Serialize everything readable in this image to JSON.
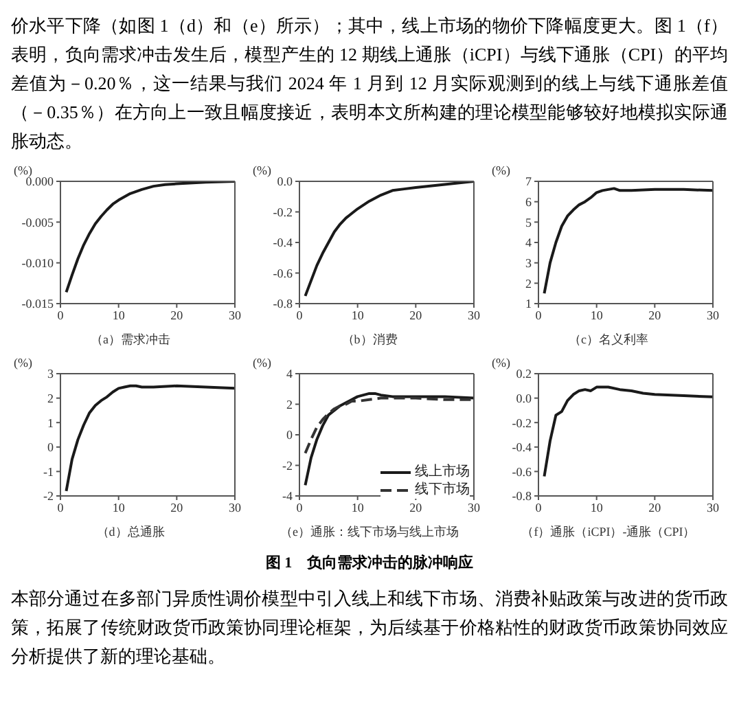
{
  "chart_data": [
    {
      "type": "line",
      "annotations": [
        "价水平下降（如图 1（d）和（e）所示）；其中，线上市场的物价下降幅度更大。图 1（f）表明，负向需求冲击发生后，模型产生的 12 期线上通胀（iCPI）与线下通胀（CPI）的平均差值为－0.20％，这一结果与我们 2024 年 1 月到 12 月实际观测到的线上与线下通胀差值（－0.35％）在方向上一致且幅度接近，表明本文所构建的理论模型能够较好地模拟实际通胀动态。"
      ],
      "xlabel": "（a）需求冲击",
      "ylabel": "(%)",
      "xlim": [
        0,
        30
      ],
      "xticks": [
        0,
        10,
        20,
        30
      ],
      "ylim": [
        -0.015,
        0
      ],
      "yticks": [
        {
          "value": -0.015,
          "label": "-0.015"
        },
        {
          "value": -0.01,
          "label": "-0.010"
        },
        {
          "value": -0.005,
          "label": "-0.005"
        },
        {
          "value": 0,
          "label": "0.000"
        }
      ],
      "series": [
        {
          "color": "#1a1a1a",
          "x": [
            1,
            2,
            3,
            4,
            5,
            6,
            7,
            8,
            9,
            10,
            12,
            14,
            16,
            18,
            20,
            25,
            30
          ],
          "values": [
            -0.0136,
            -0.0115,
            -0.0095,
            -0.0078,
            -0.0064,
            -0.0052,
            -0.0043,
            -0.0035,
            -0.0028,
            -0.0023,
            -0.0015,
            -0.001,
            -0.0006,
            -0.0004,
            -0.0003,
            -0.0001,
            0
          ]
        }
      ]
    },
    {
      "type": "line",
      "xlabel": "（b）消费",
      "ylabel": "(%)",
      "xlim": [
        0,
        30
      ],
      "xticks": [
        0,
        10,
        20,
        30
      ],
      "ylim": [
        -0.8,
        0
      ],
      "yticks": [
        {
          "value": -0.8,
          "label": "-0.8"
        },
        {
          "value": -0.6,
          "label": "-0.6"
        },
        {
          "value": -0.4,
          "label": "-0.4"
        },
        {
          "value": -0.2,
          "label": "-0.2"
        },
        {
          "value": 0,
          "label": "0.0"
        }
      ],
      "series": [
        {
          "color": "#1a1a1a",
          "x": [
            1,
            2,
            3,
            4,
            5,
            6,
            7,
            8,
            10,
            12,
            14,
            16,
            18,
            20,
            25,
            30
          ],
          "values": [
            -0.75,
            -0.65,
            -0.55,
            -0.47,
            -0.4,
            -0.33,
            -0.28,
            -0.24,
            -0.18,
            -0.13,
            -0.09,
            -0.06,
            -0.05,
            -0.04,
            -0.02,
            0
          ]
        }
      ]
    },
    {
      "type": "line",
      "xlabel": "（c）名义利率",
      "ylabel": "(%)",
      "xlim": [
        0,
        30
      ],
      "xticks": [
        0,
        10,
        20,
        30
      ],
      "ylim": [
        1,
        7
      ],
      "yticks": [
        1,
        2,
        3,
        4,
        5,
        6,
        7
      ],
      "series": [
        {
          "color": "#1a1a1a",
          "x": [
            1,
            2,
            3,
            4,
            5,
            6,
            7,
            8,
            9,
            10,
            11,
            12,
            13,
            14,
            16,
            20,
            25,
            30
          ],
          "values": [
            1.5,
            3.0,
            4.0,
            4.8,
            5.3,
            5.6,
            5.85,
            6.0,
            6.2,
            6.45,
            6.55,
            6.6,
            6.65,
            6.55,
            6.55,
            6.6,
            6.6,
            6.55
          ]
        }
      ]
    },
    {
      "type": "line",
      "xlabel": "（d）总通胀",
      "ylabel": "(%)",
      "xlim": [
        0,
        30
      ],
      "xticks": [
        0,
        10,
        20,
        30
      ],
      "ylim": [
        -2,
        3
      ],
      "yticks": [
        -2,
        -1,
        0,
        1,
        2,
        3
      ],
      "series": [
        {
          "color": "#1a1a1a",
          "x": [
            1,
            2,
            3,
            4,
            5,
            6,
            7,
            8,
            9,
            10,
            11,
            12,
            13,
            14,
            16,
            20,
            25,
            30
          ],
          "values": [
            -1.8,
            -0.5,
            0.3,
            0.9,
            1.4,
            1.7,
            1.9,
            2.05,
            2.25,
            2.4,
            2.45,
            2.5,
            2.5,
            2.45,
            2.45,
            2.5,
            2.45,
            2.4
          ]
        }
      ]
    },
    {
      "type": "line",
      "xlabel": "（e）通胀：线下市场与线上市场",
      "ylabel": "(%)",
      "xlim": [
        0,
        30
      ],
      "xticks": [
        0,
        10,
        20,
        30
      ],
      "ylim": [
        -4,
        4
      ],
      "yticks": [
        -4,
        -2,
        0,
        2,
        4
      ],
      "legend": "bottom right",
      "series": [
        {
          "name": "线上市场",
          "color": "#1a1a1a",
          "line_style": "solid",
          "x": [
            1,
            2,
            3,
            4,
            5,
            6,
            7,
            8,
            9,
            10,
            11,
            12,
            13,
            14,
            16,
            20,
            25,
            30
          ],
          "values": [
            -3.3,
            -1.5,
            -0.3,
            0.6,
            1.3,
            1.6,
            1.9,
            2.1,
            2.3,
            2.5,
            2.6,
            2.7,
            2.7,
            2.6,
            2.5,
            2.5,
            2.5,
            2.4
          ]
        },
        {
          "name": "线下市场",
          "color": "#333333",
          "line_style": "dashed",
          "x": [
            1,
            2,
            3,
            4,
            5,
            6,
            7,
            8,
            9,
            10,
            12,
            14,
            16,
            20,
            25,
            30
          ],
          "values": [
            -1.2,
            -0.3,
            0.5,
            1.0,
            1.4,
            1.7,
            1.9,
            2.0,
            2.2,
            2.2,
            2.3,
            2.4,
            2.4,
            2.4,
            2.3,
            2.3
          ]
        }
      ]
    },
    {
      "type": "line",
      "xlabel": "（f）通胀（iCPI）-通胀（CPI）",
      "ylabel": "(%)",
      "xlim": [
        0,
        30
      ],
      "xticks": [
        0,
        10,
        20,
        30
      ],
      "ylim": [
        -0.8,
        0.2
      ],
      "yticks": [
        {
          "value": -0.8,
          "label": "-0.8"
        },
        {
          "value": -0.6,
          "label": "-0.6"
        },
        {
          "value": -0.4,
          "label": "-0.4"
        },
        {
          "value": -0.2,
          "label": "-0.2"
        },
        {
          "value": 0,
          "label": "0.0"
        },
        {
          "value": 0.2,
          "label": "0.2"
        }
      ],
      "annotations": [
        "图 1　负向需求冲击的脉冲响应",
        "本部分通过在多部门异质性调价模型中引入线上和线下市场、消费补贴政策与改进的货币政策，拓展了传统财政货币政策协同理论框架，为后续基于价格粘性的财政货币政策协同效应分析提供了新的理论基础。"
      ],
      "series": [
        {
          "color": "#1a1a1a",
          "x": [
            1,
            2,
            3,
            4,
            5,
            6,
            7,
            8,
            9,
            10,
            12,
            14,
            16,
            18,
            20,
            25,
            30
          ],
          "values": [
            -0.64,
            -0.35,
            -0.14,
            -0.11,
            -0.02,
            0.03,
            0.06,
            0.07,
            0.06,
            0.09,
            0.09,
            0.07,
            0.06,
            0.04,
            0.03,
            0.02,
            0.01
          ]
        }
      ]
    }
  ]
}
